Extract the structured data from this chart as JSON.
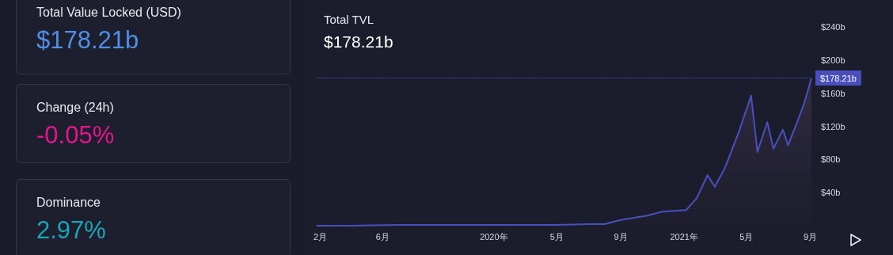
{
  "chart_data": [
    {
      "type": "other",
      "annotations": [
        "Total Value Locked (USD)",
        "$178.21b",
        "Change (24h)",
        "-0.05%",
        "Dominance",
        "2.97%"
      ],
      "colors": [
        "#4f8fea",
        "#e8148e",
        "#1aa6b6"
      ]
    },
    {
      "type": "area",
      "title": "Total TVL",
      "subtitle": "$178.21b",
      "x": [
        "2019-01-25",
        "2019-04-01",
        "2019-07-01",
        "2019-10-01",
        "2020-01-01",
        "2020-03-01",
        "2020-05-01",
        "2020-07-01",
        "2020-08-01",
        "2020-09-01",
        "2020-10-20",
        "2020-11-20",
        "2021-01-05",
        "2021-01-25",
        "2021-02-15",
        "2021-03-01",
        "2021-03-20",
        "2021-04-15",
        "2021-05-10",
        "2021-05-22",
        "2021-06-10",
        "2021-06-22",
        "2021-07-10",
        "2021-07-20",
        "2021-08-15",
        "2021-08-22",
        "2021-09-03"
      ],
      "series": [
        {
          "color": "#4a4fbd",
          "values": [
            0,
            0,
            1,
            1,
            1,
            1,
            1,
            2,
            2,
            7,
            12,
            17,
            19,
            33,
            61,
            47,
            69,
            111,
            157,
            89,
            125,
            93,
            116,
            97,
            139,
            152,
            178.21
          ]
        }
      ],
      "xlim": [
        "2019-01-25",
        "2021-09-03"
      ],
      "xticks": [
        {
          "value": "2019-02-01",
          "label": "2月"
        },
        {
          "value": "2019-06-01",
          "label": "6月"
        },
        {
          "value": "2020-01-01",
          "label": "2020年"
        },
        {
          "value": "2020-05-01",
          "label": "5月"
        },
        {
          "value": "2020-09-01",
          "label": "9月"
        },
        {
          "value": "2021-01-01",
          "label": "2021年"
        },
        {
          "value": "2021-05-01",
          "label": "5月"
        },
        {
          "value": "2021-09-01",
          "label": "9月"
        }
      ],
      "ylim": [
        0,
        240
      ],
      "yticks": [
        {
          "value": 40,
          "label": "$40b"
        },
        {
          "value": 80,
          "label": "$80b"
        },
        {
          "value": 120,
          "label": "$120b"
        },
        {
          "value": 160,
          "label": "$160b"
        },
        {
          "value": 200,
          "label": "$200b"
        },
        {
          "value": 240,
          "label": "$240b"
        }
      ],
      "ref_lines": [
        {
          "axis": "y",
          "value": 178.21,
          "label": "$178.21b",
          "color": "#4a4fbd",
          "line_style": "dotted"
        }
      ],
      "grid": false,
      "marker": "none"
    }
  ]
}
